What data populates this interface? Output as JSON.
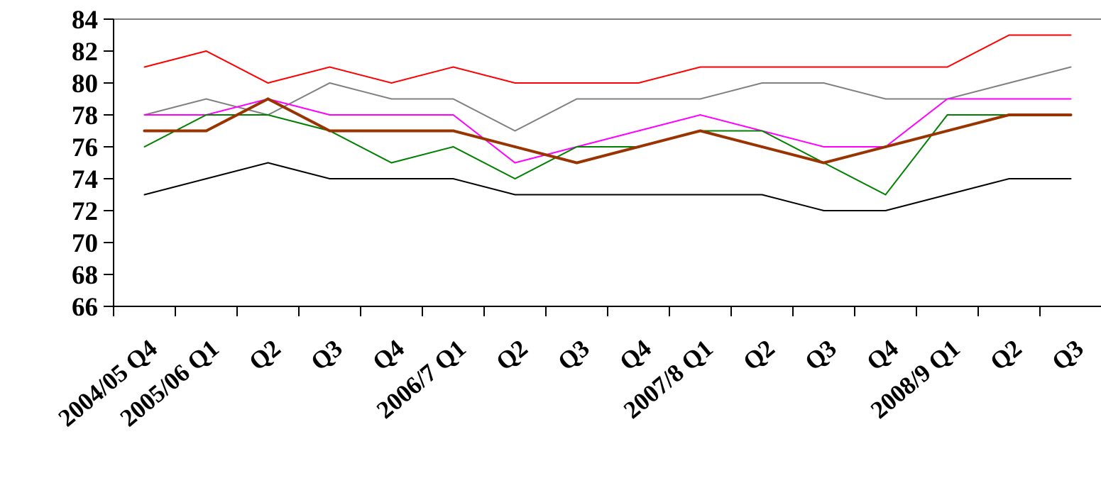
{
  "chart_data": {
    "type": "line",
    "categories": [
      "2004/05 Q4",
      "2005/06 Q1",
      "Q2",
      "Q3",
      "Q4",
      "2006/7 Q1",
      "Q2",
      "Q3",
      "Q4",
      "2007/8 Q1",
      "Q2",
      "Q3",
      "Q4",
      "2008/9 Q1",
      "Q2",
      "Q3"
    ],
    "y_ticks": [
      "66",
      "68",
      "70",
      "72",
      "74",
      "76",
      "78",
      "80",
      "82",
      "84"
    ],
    "ylim": [
      66,
      84
    ],
    "grid": false,
    "legend": "none",
    "series": [
      {
        "color": "#ff0000",
        "width": 2,
        "values": [
          81,
          82,
          80,
          81,
          80,
          81,
          80,
          80,
          80,
          81,
          81,
          81,
          81,
          81,
          83,
          83
        ]
      },
      {
        "color": "#808080",
        "width": 2,
        "values": [
          78,
          79,
          78,
          80,
          79,
          79,
          77,
          79,
          79,
          79,
          80,
          80,
          79,
          79,
          80,
          81
        ]
      },
      {
        "color": "#ff00ff",
        "width": 2,
        "values": [
          78,
          78,
          79,
          78,
          78,
          78,
          75,
          76,
          77,
          78,
          77,
          76,
          76,
          79,
          79,
          79
        ]
      },
      {
        "color": "#008000",
        "width": 2,
        "values": [
          76,
          78,
          78,
          77,
          75,
          76,
          74,
          76,
          76,
          77,
          77,
          75,
          73,
          78,
          78,
          78
        ]
      },
      {
        "color": "#000000",
        "width": 2,
        "values": [
          73,
          74,
          75,
          74,
          74,
          74,
          73,
          73,
          73,
          73,
          73,
          72,
          72,
          73,
          74,
          74
        ]
      },
      {
        "color": "#993300",
        "width": 4,
        "values": [
          77,
          77,
          79,
          77,
          77,
          77,
          76,
          75,
          76,
          77,
          76,
          75,
          76,
          77,
          78,
          78
        ]
      }
    ]
  }
}
